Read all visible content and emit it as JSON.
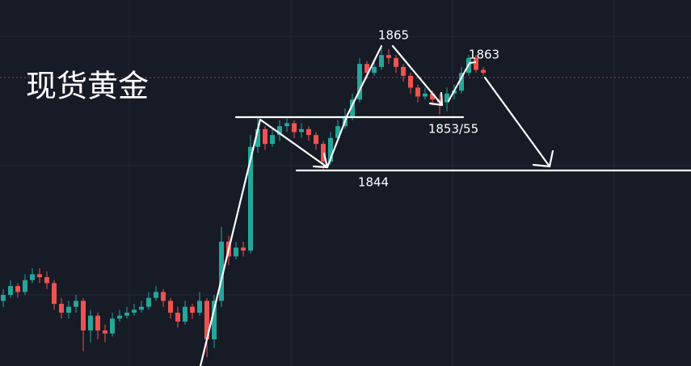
{
  "chart_data": {
    "type": "candlestick",
    "title": "现货黄金",
    "annotations": [
      "1865",
      "1863",
      "1853/55",
      "1844"
    ],
    "up_color": "#26a69a",
    "down_color": "#ef5350",
    "ylim": [
      1811.0,
      1872.8
    ],
    "open": [
      1822,
      1823,
      1824.5,
      1823.5,
      1825.5,
      1826.5,
      1826,
      1825,
      1821.5,
      1820,
      1821,
      1822,
      1817,
      1819.5,
      1817,
      1816.5,
      1819,
      1819.5,
      1820,
      1820.5,
      1821,
      1822.5,
      1823.5,
      1822,
      1820,
      1818.5,
      1821,
      1820,
      1822,
      1815.5,
      1822,
      1832,
      1829.5,
      1831,
      1830.5,
      1848,
      1851,
      1848.5,
      1850,
      1851.5,
      1852,
      1850.5,
      1851,
      1850,
      1848.5,
      1845.5,
      1849.5,
      1851.5,
      1853,
      1856,
      1862,
      1860.5,
      1861.5,
      1863.5,
      1863,
      1861.5,
      1860,
      1858,
      1856.5,
      1857,
      1856,
      1855.5,
      1857,
      1857.5,
      1860.5,
      1863,
      1861
    ],
    "high": [
      1824,
      1825.5,
      1825,
      1826.5,
      1827.5,
      1827.5,
      1827,
      1825.5,
      1822.5,
      1822,
      1823,
      1822.5,
      1820.5,
      1820,
      1818,
      1820,
      1820.5,
      1821,
      1821.5,
      1822,
      1823.5,
      1824.5,
      1824,
      1822.5,
      1821,
      1822,
      1821.5,
      1823.5,
      1822.5,
      1823,
      1834.5,
      1833,
      1832,
      1832,
      1850,
      1853,
      1851.5,
      1851,
      1852.5,
      1853,
      1852.5,
      1852,
      1851.5,
      1850.5,
      1849,
      1850.5,
      1852.5,
      1854.5,
      1857,
      1863,
      1862.5,
      1862.5,
      1865,
      1864.5,
      1863.5,
      1862,
      1860.5,
      1858.5,
      1858,
      1857.5,
      1857,
      1858,
      1858.5,
      1861.5,
      1863.5,
      1863.5,
      1861.5
    ],
    "low": [
      1821,
      1822.5,
      1822.5,
      1823,
      1825,
      1825,
      1824,
      1820.5,
      1819,
      1819,
      1820,
      1813.5,
      1815,
      1815.5,
      1815,
      1816,
      1818.5,
      1819,
      1819.5,
      1820,
      1820.5,
      1822,
      1821,
      1819,
      1817.5,
      1818,
      1819,
      1819.5,
      1812.5,
      1814,
      1821,
      1828,
      1829,
      1829.5,
      1830,
      1847,
      1847.5,
      1848,
      1849,
      1850.5,
      1849.5,
      1849.5,
      1849,
      1847.5,
      1844,
      1845,
      1849,
      1851,
      1852.5,
      1855.5,
      1859.5,
      1860,
      1861,
      1862,
      1860.5,
      1859,
      1857,
      1855.5,
      1856,
      1855,
      1853.5,
      1854,
      1856,
      1857,
      1860,
      1860.5,
      1860
    ],
    "close": [
      1823,
      1824.5,
      1823.5,
      1825.5,
      1826.5,
      1826,
      1825,
      1821.5,
      1820,
      1821,
      1822,
      1817,
      1819.5,
      1817,
      1816.5,
      1819,
      1819.5,
      1820,
      1820.5,
      1821,
      1822.5,
      1823.5,
      1822,
      1820,
      1818.5,
      1821,
      1820,
      1822,
      1815.5,
      1822,
      1832,
      1829.5,
      1831,
      1830.5,
      1848,
      1851,
      1848.5,
      1850,
      1851.5,
      1852,
      1850.5,
      1851,
      1850,
      1848.5,
      1845.5,
      1849.5,
      1851.5,
      1853,
      1856,
      1862,
      1860.5,
      1861.5,
      1863.5,
      1863,
      1861.5,
      1860,
      1858,
      1856.5,
      1857,
      1856,
      1855.5,
      1857,
      1857.5,
      1860.5,
      1863,
      1861,
      1860.5
    ]
  }
}
